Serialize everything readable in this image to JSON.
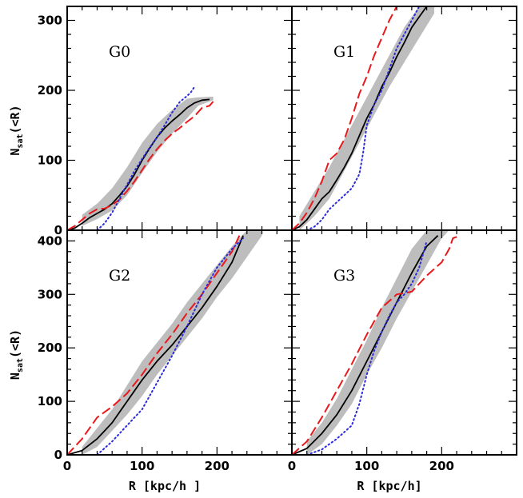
{
  "chart_data": [
    {
      "type": "line",
      "panel_label": "G0",
      "xlim": [
        0,
        300
      ],
      "ylim": [
        0,
        320
      ],
      "yticks": [
        0,
        100,
        200,
        300
      ],
      "ylabel": "N_sat(<R)",
      "xlabel": "",
      "band": {
        "color": "#bdbdbd",
        "x": [
          20,
          40,
          60,
          80,
          100,
          120,
          140,
          160,
          175,
          195
        ],
        "lower": [
          6,
          16,
          28,
          50,
          82,
          112,
          138,
          160,
          178,
          186
        ],
        "upper": [
          22,
          38,
          60,
          90,
          125,
          152,
          172,
          188,
          190,
          191
        ]
      },
      "series": [
        {
          "style": "solid",
          "color": "#000000",
          "x": [
            0,
            10,
            20,
            30,
            40,
            50,
            60,
            70,
            80,
            90,
            100,
            110,
            120,
            130,
            140,
            150,
            160,
            170,
            180,
            190
          ],
          "y": [
            0,
            3,
            10,
            18,
            24,
            30,
            38,
            50,
            63,
            80,
            100,
            117,
            133,
            146,
            156,
            165,
            175,
            182,
            186,
            187
          ]
        },
        {
          "style": "dashed",
          "color": "#e8191c",
          "x": [
            0,
            10,
            20,
            30,
            40,
            50,
            60,
            70,
            80,
            90,
            100,
            110,
            120,
            130,
            140,
            150,
            160,
            170,
            180,
            190,
            195
          ],
          "y": [
            0,
            6,
            15,
            24,
            30,
            31,
            36,
            44,
            56,
            70,
            86,
            102,
            116,
            128,
            138,
            146,
            155,
            163,
            175,
            178,
            184
          ]
        },
        {
          "style": "dotted",
          "color": "#2b2bd9",
          "x": [
            40,
            50,
            60,
            70,
            80,
            90,
            100,
            110,
            120,
            130,
            140,
            150,
            160,
            165,
            170
          ],
          "y": [
            0,
            10,
            25,
            45,
            65,
            85,
            102,
            118,
            133,
            150,
            168,
            183,
            192,
            197,
            205
          ]
        }
      ]
    },
    {
      "type": "line",
      "panel_label": "G1",
      "xlim": [
        0,
        300
      ],
      "ylim": [
        0,
        320
      ],
      "xlabel": "",
      "ylabel": "",
      "band": {
        "color": "#bdbdbd",
        "x": [
          10,
          30,
          50,
          70,
          90,
          110,
          130,
          150,
          170,
          190
        ],
        "lower": [
          0,
          20,
          45,
          85,
          125,
          165,
          205,
          240,
          275,
          310
        ],
        "upper": [
          20,
          55,
          90,
          130,
          170,
          210,
          250,
          290,
          330,
          330
        ]
      },
      "series": [
        {
          "style": "solid",
          "color": "#000000",
          "x": [
            0,
            10,
            20,
            30,
            40,
            50,
            60,
            70,
            80,
            90,
            100,
            110,
            120,
            130,
            140,
            150,
            160,
            170,
            180,
            185
          ],
          "y": [
            0,
            5,
            15,
            30,
            45,
            55,
            72,
            90,
            110,
            135,
            160,
            180,
            205,
            225,
            248,
            268,
            290,
            305,
            320,
            320
          ]
        },
        {
          "style": "dashed",
          "color": "#e8191c",
          "x": [
            0,
            10,
            20,
            30,
            40,
            50,
            60,
            70,
            80,
            90,
            100,
            110,
            120,
            130,
            140,
            150,
            160
          ],
          "y": [
            0,
            10,
            25,
            45,
            70,
            100,
            110,
            130,
            160,
            195,
            220,
            250,
            275,
            300,
            320,
            320,
            320
          ]
        },
        {
          "style": "dotted",
          "color": "#2b2bd9",
          "x": [
            20,
            30,
            40,
            50,
            60,
            70,
            80,
            90,
            95,
            100,
            110,
            120,
            130,
            140,
            150,
            160,
            170
          ],
          "y": [
            0,
            5,
            15,
            30,
            40,
            50,
            60,
            80,
            110,
            150,
            180,
            200,
            230,
            260,
            280,
            300,
            320
          ]
        }
      ]
    },
    {
      "type": "line",
      "panel_label": "G2",
      "xlim": [
        0,
        300
      ],
      "ylim": [
        0,
        420
      ],
      "yticks": [
        0,
        100,
        200,
        300,
        400
      ],
      "xticks": [
        0,
        100,
        200
      ],
      "ylabel": "N_sat(<R)",
      "xlabel": "R [kpc/h ]",
      "band": {
        "color": "#bdbdbd",
        "x": [
          20,
          40,
          60,
          80,
          100,
          120,
          140,
          160,
          180,
          200,
          220,
          240,
          260
        ],
        "lower": [
          0,
          15,
          45,
          75,
          110,
          150,
          185,
          220,
          255,
          295,
          330,
          370,
          410
        ],
        "upper": [
          15,
          50,
          85,
          130,
          175,
          210,
          245,
          285,
          320,
          355,
          390,
          420,
          420
        ]
      },
      "series": [
        {
          "style": "solid",
          "color": "#000000",
          "x": [
            0,
            20,
            40,
            60,
            80,
            100,
            120,
            140,
            160,
            180,
            200,
            220,
            235
          ],
          "y": [
            0,
            8,
            30,
            60,
            100,
            140,
            175,
            205,
            240,
            275,
            315,
            360,
            410
          ]
        },
        {
          "style": "dashed",
          "color": "#e8191c",
          "x": [
            0,
            20,
            40,
            60,
            80,
            100,
            120,
            140,
            160,
            180,
            200,
            220,
            230
          ],
          "y": [
            0,
            30,
            70,
            90,
            115,
            150,
            190,
            225,
            265,
            300,
            340,
            380,
            410
          ]
        },
        {
          "style": "dotted",
          "color": "#2b2bd9",
          "x": [
            40,
            60,
            80,
            100,
            120,
            140,
            160,
            180,
            200,
            220,
            235
          ],
          "y": [
            0,
            25,
            55,
            85,
            135,
            185,
            240,
            300,
            350,
            385,
            405
          ]
        }
      ]
    },
    {
      "type": "line",
      "panel_label": "G3",
      "xlim": [
        0,
        300
      ],
      "ylim": [
        0,
        420
      ],
      "xticks": [
        0,
        100,
        200
      ],
      "xlabel": "R [kpc/h]",
      "ylabel": "",
      "band": {
        "color": "#bdbdbd",
        "x": [
          20,
          40,
          60,
          80,
          100,
          120,
          140,
          160,
          180,
          200,
          210
        ],
        "lower": [
          0,
          20,
          55,
          95,
          150,
          200,
          255,
          305,
          355,
          405,
          420
        ],
        "upper": [
          25,
          60,
          105,
          160,
          215,
          275,
          330,
          385,
          420,
          420,
          420
        ]
      },
      "series": [
        {
          "style": "solid",
          "color": "#000000",
          "x": [
            0,
            20,
            40,
            60,
            80,
            100,
            120,
            140,
            160,
            180,
            195
          ],
          "y": [
            0,
            12,
            40,
            75,
            120,
            175,
            230,
            285,
            340,
            390,
            410
          ]
        },
        {
          "style": "dashed",
          "color": "#e8191c",
          "x": [
            0,
            20,
            40,
            60,
            80,
            100,
            120,
            140,
            160,
            180,
            200,
            210,
            215,
            225
          ],
          "y": [
            0,
            25,
            70,
            120,
            170,
            225,
            275,
            300,
            305,
            335,
            360,
            385,
            405,
            410
          ]
        },
        {
          "style": "dotted",
          "color": "#2b2bd9",
          "x": [
            20,
            40,
            60,
            80,
            90,
            100,
            110,
            120,
            130,
            140,
            150,
            160,
            170,
            180
          ],
          "y": [
            0,
            10,
            30,
            55,
            95,
            150,
            195,
            230,
            260,
            285,
            300,
            320,
            350,
            400
          ]
        }
      ]
    }
  ]
}
